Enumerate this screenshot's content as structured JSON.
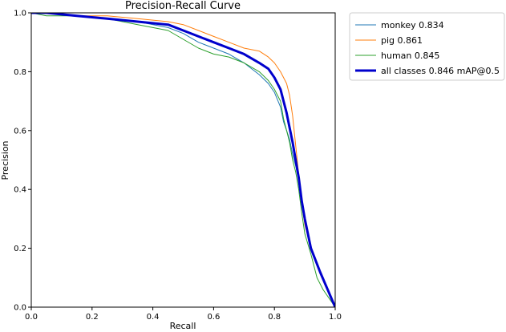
{
  "chart_data": {
    "type": "line",
    "title": "Precision-Recall Curve",
    "xlabel": "Recall",
    "ylabel": "Precision",
    "xlim": [
      0,
      1
    ],
    "ylim": [
      0,
      1
    ],
    "xticks": [
      "0.0",
      "0.2",
      "0.4",
      "0.6",
      "0.8",
      "1.0"
    ],
    "yticks": [
      "0.0",
      "0.2",
      "0.4",
      "0.6",
      "0.8",
      "1.0"
    ],
    "grid": false,
    "legend_position": "outside-right",
    "series": [
      {
        "name": "monkey 0.834",
        "color": "#1f77b4",
        "width": 1,
        "x": [
          0.0,
          0.05,
          0.15,
          0.25,
          0.35,
          0.45,
          0.5,
          0.55,
          0.6,
          0.65,
          0.7,
          0.75,
          0.78,
          0.8,
          0.82,
          0.83,
          0.84,
          0.85,
          0.86,
          0.87,
          0.88,
          0.89,
          0.9,
          0.92,
          0.95,
          1.0
        ],
        "y": [
          1.0,
          1.0,
          0.99,
          0.98,
          0.97,
          0.95,
          0.93,
          0.9,
          0.88,
          0.86,
          0.83,
          0.79,
          0.76,
          0.73,
          0.68,
          0.63,
          0.6,
          0.57,
          0.52,
          0.48,
          0.43,
          0.35,
          0.3,
          0.2,
          0.12,
          0.0
        ]
      },
      {
        "name": "pig 0.861",
        "color": "#ff7f0e",
        "width": 1,
        "x": [
          0.0,
          0.05,
          0.15,
          0.25,
          0.35,
          0.45,
          0.5,
          0.55,
          0.6,
          0.65,
          0.7,
          0.75,
          0.78,
          0.8,
          0.82,
          0.84,
          0.85,
          0.86,
          0.87,
          0.88,
          0.89,
          0.9,
          0.92,
          0.95,
          1.0
        ],
        "y": [
          1.0,
          1.0,
          0.99,
          0.99,
          0.98,
          0.97,
          0.96,
          0.94,
          0.92,
          0.9,
          0.88,
          0.87,
          0.85,
          0.83,
          0.8,
          0.76,
          0.72,
          0.65,
          0.55,
          0.45,
          0.35,
          0.28,
          0.2,
          0.12,
          0.0
        ]
      },
      {
        "name": "human 0.845",
        "color": "#2ca02c",
        "width": 1,
        "x": [
          0.0,
          0.05,
          0.15,
          0.25,
          0.35,
          0.45,
          0.5,
          0.55,
          0.6,
          0.65,
          0.7,
          0.75,
          0.78,
          0.8,
          0.82,
          0.83,
          0.84,
          0.85,
          0.86,
          0.87,
          0.88,
          0.89,
          0.9,
          0.92,
          0.94,
          0.96,
          1.0
        ],
        "y": [
          1.0,
          0.99,
          0.99,
          0.98,
          0.96,
          0.94,
          0.91,
          0.88,
          0.86,
          0.85,
          0.83,
          0.8,
          0.77,
          0.74,
          0.7,
          0.64,
          0.6,
          0.56,
          0.5,
          0.46,
          0.4,
          0.32,
          0.25,
          0.18,
          0.1,
          0.06,
          0.0
        ]
      },
      {
        "name": "all classes 0.846 mAP@0.5",
        "color": "#0000cc",
        "width": 3,
        "x": [
          0.0,
          0.05,
          0.15,
          0.25,
          0.35,
          0.45,
          0.5,
          0.55,
          0.6,
          0.65,
          0.7,
          0.75,
          0.78,
          0.8,
          0.82,
          0.83,
          0.84,
          0.85,
          0.86,
          0.87,
          0.88,
          0.89,
          0.9,
          0.92,
          0.95,
          1.0
        ],
        "y": [
          1.0,
          1.0,
          0.99,
          0.98,
          0.97,
          0.96,
          0.94,
          0.92,
          0.9,
          0.88,
          0.86,
          0.83,
          0.81,
          0.78,
          0.74,
          0.7,
          0.66,
          0.61,
          0.56,
          0.5,
          0.44,
          0.36,
          0.3,
          0.2,
          0.12,
          0.0
        ]
      }
    ]
  }
}
